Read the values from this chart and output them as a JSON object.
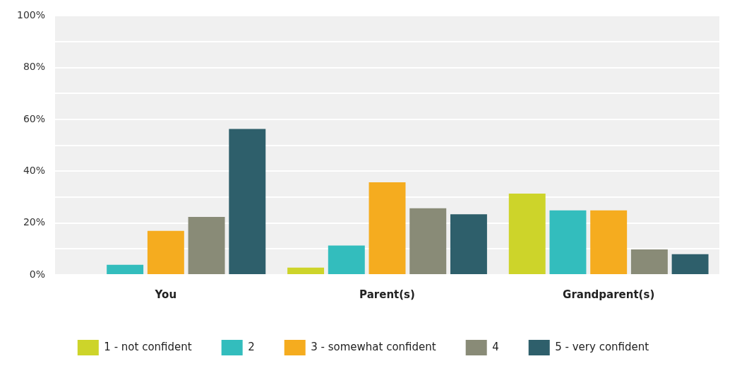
{
  "chart_data": {
    "type": "bar",
    "categories": [
      "You",
      "Parent(s)",
      "Grandparent(s)"
    ],
    "series": [
      {
        "name": "1 - not confident",
        "color": "#cdd42a",
        "values": [
          0,
          2.8,
          31.4
        ]
      },
      {
        "name": "2",
        "color": "#33bdbd",
        "values": [
          3.9,
          11.3,
          24.9
        ]
      },
      {
        "name": "3 - somewhat confident",
        "color": "#f5ac1f",
        "values": [
          17,
          35.7,
          24.9
        ]
      },
      {
        "name": "4",
        "color": "#898b77",
        "values": [
          22.4,
          25.7,
          9.8
        ]
      },
      {
        "name": "5 - very confident",
        "color": "#2e5f6b",
        "values": [
          56.3,
          23.4,
          8
        ]
      }
    ],
    "ylim": [
      0,
      100
    ],
    "yticks": [
      {
        "value": 0,
        "label": "0%"
      },
      {
        "value": 10,
        "label": null
      },
      {
        "value": 20,
        "label": "20%"
      },
      {
        "value": 30,
        "label": null
      },
      {
        "value": 40,
        "label": "40%"
      },
      {
        "value": 50,
        "label": null
      },
      {
        "value": 60,
        "label": "60%"
      },
      {
        "value": 70,
        "label": null
      },
      {
        "value": 80,
        "label": "80%"
      },
      {
        "value": 90,
        "label": null
      },
      {
        "value": 100,
        "label": "100%"
      }
    ],
    "grid": "y",
    "legend": "bottom"
  }
}
